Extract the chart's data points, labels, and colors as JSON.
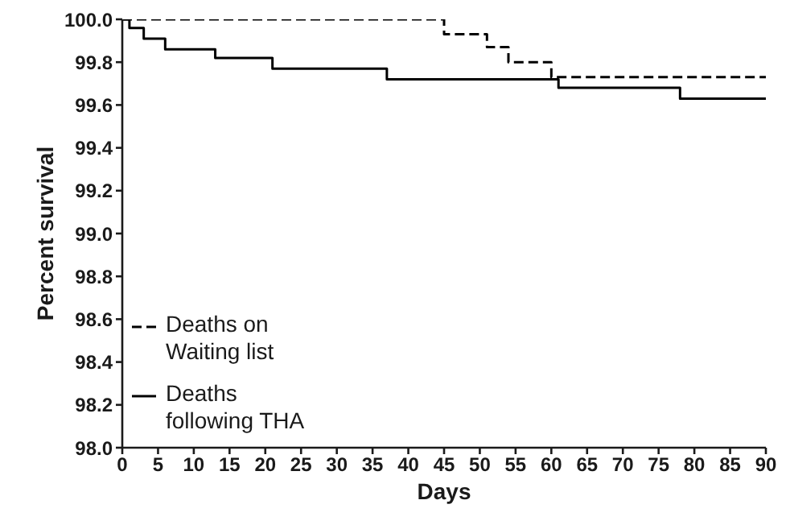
{
  "chart_data": {
    "type": "step",
    "xlabel": "Days",
    "ylabel": "Percent survival",
    "xlim": [
      0,
      90
    ],
    "xticks": [
      0,
      5,
      10,
      15,
      20,
      25,
      30,
      35,
      40,
      45,
      50,
      55,
      60,
      65,
      70,
      75,
      80,
      85,
      90
    ],
    "ylim": [
      98,
      100
    ],
    "yticks": [
      {
        "value": 98,
        "label": "98.0"
      },
      98.2,
      98.4,
      98.6,
      98.8,
      {
        "value": 99,
        "label": "99.0"
      },
      99.2,
      99.4,
      99.6,
      99.8,
      {
        "value": 100,
        "label": "100.0"
      }
    ],
    "legend": "bottom left",
    "series": [
      {
        "name": "Deaths on Waiting list",
        "color": "#000000",
        "line_style": "dashed",
        "x": [
          0,
          45,
          51,
          54,
          60,
          90
        ],
        "values": [
          100,
          99.93,
          99.87,
          99.8,
          99.73,
          99.73
        ]
      },
      {
        "name": "Deaths following THA",
        "color": "#000000",
        "line_style": "solid",
        "x": [
          0,
          1,
          3,
          6,
          13,
          21,
          37,
          61,
          78,
          90
        ],
        "values": [
          100,
          99.96,
          99.91,
          99.86,
          99.82,
          99.77,
          99.72,
          99.68,
          99.63,
          99.63
        ]
      }
    ]
  }
}
